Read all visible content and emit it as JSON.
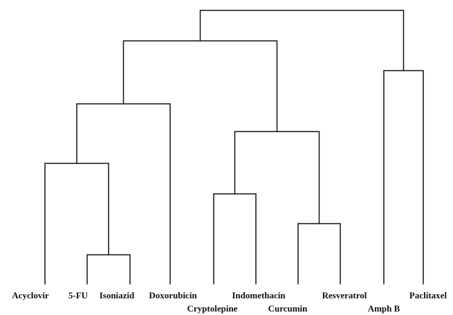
{
  "dendrogram": {
    "leaves": [
      "Acyclovir",
      "5-FU",
      "Isoniazid",
      "Doxorubicin",
      "Cryptolepine",
      "Indomethacin",
      "Curcumin",
      "Resveratrol",
      "Amph B",
      "Paclitaxel"
    ],
    "merges": [
      {
        "left": "5-FU",
        "right": "Isoniazid",
        "level": 1
      },
      {
        "left": "Acyclovir",
        "right": "M1",
        "level": 2
      },
      {
        "left": "M2",
        "right": "Doxorubicin",
        "level": 3
      },
      {
        "left": "Curcumin",
        "right": "Resveratrol",
        "level": 1
      },
      {
        "left": "Cryptolepine",
        "right": "Indomethacin",
        "level": 2
      },
      {
        "left": "M5",
        "right": "M4",
        "level": 3
      },
      {
        "left": "M3",
        "right": "M6",
        "level": 4
      },
      {
        "left": "Amph B",
        "right": "Paclitaxel",
        "level": 4
      },
      {
        "left": "M7",
        "right": "M8",
        "level": 5
      }
    ]
  }
}
